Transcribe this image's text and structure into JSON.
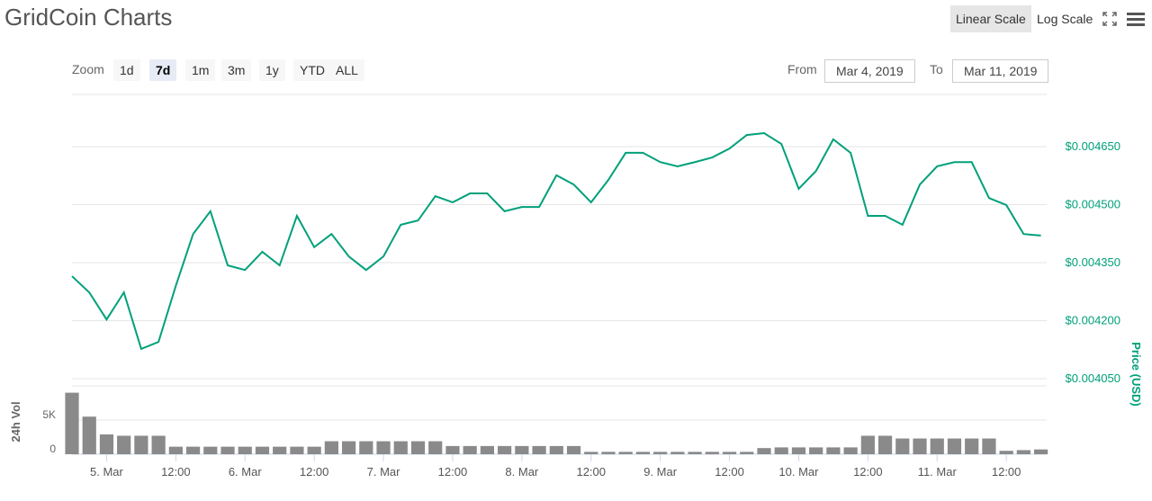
{
  "toolbar": {
    "scale_buttons": [
      "Linear Scale",
      "Log Scale"
    ],
    "active_scale": "Linear Scale",
    "zoom_label": "Zoom",
    "zoom_buttons": [
      "1d",
      "7d",
      "1m",
      "3m",
      "1y",
      "YTD",
      "ALL"
    ],
    "active_zoom": "7d",
    "from_label": "From",
    "from_date": "Mar 4, 2019",
    "to_label": "To",
    "to_date": "Mar 11, 2019"
  },
  "chart_data": [
    {
      "type": "line",
      "title": "GridCoin Charts",
      "ylabel": "Price (USD)",
      "color": "#00a07a",
      "x": [
        "2019-03-04T18:00",
        "2019-03-04T21:00",
        "2019-03-05T00:00",
        "2019-03-05T03:00",
        "2019-03-05T06:00",
        "2019-03-05T09:00",
        "2019-03-05T12:00",
        "2019-03-05T15:00",
        "2019-03-05T18:00",
        "2019-03-05T21:00",
        "2019-03-06T00:00",
        "2019-03-06T03:00",
        "2019-03-06T06:00",
        "2019-03-06T09:00",
        "2019-03-06T12:00",
        "2019-03-06T15:00",
        "2019-03-06T18:00",
        "2019-03-06T21:00",
        "2019-03-07T00:00",
        "2019-03-07T03:00",
        "2019-03-07T06:00",
        "2019-03-07T09:00",
        "2019-03-07T12:00",
        "2019-03-07T15:00",
        "2019-03-07T18:00",
        "2019-03-07T21:00",
        "2019-03-08T00:00",
        "2019-03-08T03:00",
        "2019-03-08T06:00",
        "2019-03-08T09:00",
        "2019-03-08T12:00",
        "2019-03-08T15:00",
        "2019-03-08T18:00",
        "2019-03-08T21:00",
        "2019-03-09T00:00",
        "2019-03-09T03:00",
        "2019-03-09T06:00",
        "2019-03-09T09:00",
        "2019-03-09T12:00",
        "2019-03-09T15:00",
        "2019-03-09T18:00",
        "2019-03-09T21:00",
        "2019-03-10T00:00",
        "2019-03-10T03:00",
        "2019-03-10T06:00",
        "2019-03-10T09:00",
        "2019-03-10T12:00",
        "2019-03-10T15:00",
        "2019-03-10T18:00",
        "2019-03-10T21:00",
        "2019-03-11T00:00",
        "2019-03-11T03:00",
        "2019-03-11T06:00",
        "2019-03-11T09:00",
        "2019-03-11T12:00",
        "2019-03-11T15:00",
        "2019-03-11T18:00"
      ],
      "values": [
        0.004315,
        0.004273,
        0.004203,
        0.004273,
        0.004127,
        0.004145,
        0.00429,
        0.004424,
        0.004483,
        0.004343,
        0.004331,
        0.004378,
        0.004343,
        0.004471,
        0.00439,
        0.004424,
        0.004366,
        0.004331,
        0.004366,
        0.004448,
        0.004459,
        0.004522,
        0.004506,
        0.004529,
        0.004529,
        0.004483,
        0.004494,
        0.004494,
        0.004576,
        0.004552,
        0.004506,
        0.004564,
        0.004634,
        0.004634,
        0.00461,
        0.004599,
        0.00461,
        0.004622,
        0.004645,
        0.00468,
        0.004685,
        0.004657,
        0.004541,
        0.004587,
        0.004669,
        0.004634,
        0.004471,
        0.004471,
        0.004448,
        0.004552,
        0.004599,
        0.00461,
        0.00461,
        0.004517,
        0.004499,
        0.004424,
        0.00442
      ],
      "xlim": [
        "2019-03-04T18:00",
        "2019-03-11T19:00"
      ],
      "ylim": [
        0.004036,
        0.004785
      ],
      "yticks": [
        {
          "value": 0.00405,
          "label": "$0.004050"
        },
        {
          "value": 0.0042,
          "label": "$0.004200"
        },
        {
          "value": 0.00435,
          "label": "$0.004350"
        },
        {
          "value": 0.0045,
          "label": "$0.004500"
        },
        {
          "value": 0.00465,
          "label": "$0.004650"
        }
      ],
      "grid": true
    },
    {
      "type": "bar",
      "ylabel": "24h Vol",
      "color": "#8a8a8a",
      "x": [
        "2019-03-04T18:00",
        "2019-03-04T21:00",
        "2019-03-05T00:00",
        "2019-03-05T03:00",
        "2019-03-05T06:00",
        "2019-03-05T09:00",
        "2019-03-05T12:00",
        "2019-03-05T15:00",
        "2019-03-05T18:00",
        "2019-03-05T21:00",
        "2019-03-06T00:00",
        "2019-03-06T03:00",
        "2019-03-06T06:00",
        "2019-03-06T09:00",
        "2019-03-06T12:00",
        "2019-03-06T15:00",
        "2019-03-06T18:00",
        "2019-03-06T21:00",
        "2019-03-07T00:00",
        "2019-03-07T03:00",
        "2019-03-07T06:00",
        "2019-03-07T09:00",
        "2019-03-07T12:00",
        "2019-03-07T15:00",
        "2019-03-07T18:00",
        "2019-03-07T21:00",
        "2019-03-08T00:00",
        "2019-03-08T03:00",
        "2019-03-08T06:00",
        "2019-03-08T09:00",
        "2019-03-08T12:00",
        "2019-03-08T15:00",
        "2019-03-08T18:00",
        "2019-03-08T21:00",
        "2019-03-09T00:00",
        "2019-03-09T03:00",
        "2019-03-09T06:00",
        "2019-03-09T09:00",
        "2019-03-09T12:00",
        "2019-03-09T15:00",
        "2019-03-09T18:00",
        "2019-03-09T21:00",
        "2019-03-10T00:00",
        "2019-03-10T03:00",
        "2019-03-10T06:00",
        "2019-03-10T09:00",
        "2019-03-10T12:00",
        "2019-03-10T15:00",
        "2019-03-10T18:00",
        "2019-03-10T21:00",
        "2019-03-11T00:00",
        "2019-03-11T03:00",
        "2019-03-11T06:00",
        "2019-03-11T09:00",
        "2019-03-11T12:00",
        "2019-03-11T15:00",
        "2019-03-11T18:00"
      ],
      "values": [
        9000,
        5500,
        2900,
        2700,
        2700,
        2700,
        1100,
        1100,
        1100,
        1100,
        1100,
        1100,
        1100,
        1100,
        1100,
        1900,
        1900,
        1900,
        1900,
        1900,
        1900,
        1900,
        1200,
        1200,
        1200,
        1200,
        1200,
        1200,
        1200,
        1200,
        350,
        350,
        350,
        350,
        350,
        350,
        350,
        350,
        350,
        350,
        900,
        1000,
        1000,
        1000,
        1000,
        1000,
        2700,
        2700,
        2300,
        2300,
        2300,
        2300,
        2300,
        2300,
        500,
        600,
        700
      ],
      "xlim": [
        "2019-03-04T18:00",
        "2019-03-11T19:00"
      ],
      "ylim": [
        0,
        10000
      ],
      "yticks": [
        0,
        {
          "value": 5000,
          "label": "5K"
        }
      ],
      "xticks": [
        {
          "value": "2019-03-05T00:00",
          "label": "5. Mar"
        },
        {
          "value": "2019-03-05T12:00",
          "label": "12:00"
        },
        {
          "value": "2019-03-06T00:00",
          "label": "6. Mar"
        },
        {
          "value": "2019-03-06T12:00",
          "label": "12:00"
        },
        {
          "value": "2019-03-07T00:00",
          "label": "7. Mar"
        },
        {
          "value": "2019-03-07T12:00",
          "label": "12:00"
        },
        {
          "value": "2019-03-08T00:00",
          "label": "8. Mar"
        },
        {
          "value": "2019-03-08T12:00",
          "label": "12:00"
        },
        {
          "value": "2019-03-09T00:00",
          "label": "9. Mar"
        },
        {
          "value": "2019-03-09T12:00",
          "label": "12:00"
        },
        {
          "value": "2019-03-10T00:00",
          "label": "10. Mar"
        },
        {
          "value": "2019-03-10T12:00",
          "label": "12:00"
        },
        {
          "value": "2019-03-11T00:00",
          "label": "11. Mar"
        },
        {
          "value": "2019-03-11T12:00",
          "label": "12:00"
        }
      ],
      "grid": true
    }
  ]
}
